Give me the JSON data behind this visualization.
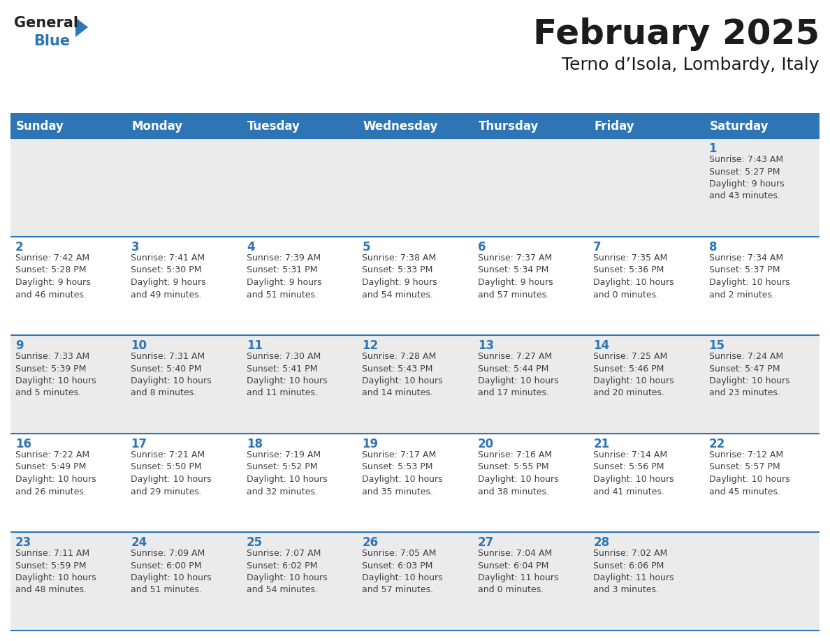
{
  "title": "February 2025",
  "subtitle": "Terno d’Isola, Lombardy, Italy",
  "header_bg": "#2E75B6",
  "header_text": "#FFFFFF",
  "cell_bg_odd": "#EBEBEB",
  "cell_bg_even": "#FFFFFF",
  "day_number_color": "#2E75B6",
  "text_color": "#404040",
  "border_color": "#2E75B6",
  "line_color": "#2E75B6",
  "days_of_week": [
    "Sunday",
    "Monday",
    "Tuesday",
    "Wednesday",
    "Thursday",
    "Friday",
    "Saturday"
  ],
  "logo_general_color": "#222222",
  "logo_blue_color": "#2E75B6",
  "title_fontsize": 36,
  "subtitle_fontsize": 18,
  "header_fontsize": 12,
  "day_num_fontsize": 12,
  "info_fontsize": 9,
  "weeks": [
    [
      {
        "day": 0,
        "info": ""
      },
      {
        "day": 0,
        "info": ""
      },
      {
        "day": 0,
        "info": ""
      },
      {
        "day": 0,
        "info": ""
      },
      {
        "day": 0,
        "info": ""
      },
      {
        "day": 0,
        "info": ""
      },
      {
        "day": 1,
        "info": "Sunrise: 7:43 AM\nSunset: 5:27 PM\nDaylight: 9 hours\nand 43 minutes."
      }
    ],
    [
      {
        "day": 2,
        "info": "Sunrise: 7:42 AM\nSunset: 5:28 PM\nDaylight: 9 hours\nand 46 minutes."
      },
      {
        "day": 3,
        "info": "Sunrise: 7:41 AM\nSunset: 5:30 PM\nDaylight: 9 hours\nand 49 minutes."
      },
      {
        "day": 4,
        "info": "Sunrise: 7:39 AM\nSunset: 5:31 PM\nDaylight: 9 hours\nand 51 minutes."
      },
      {
        "day": 5,
        "info": "Sunrise: 7:38 AM\nSunset: 5:33 PM\nDaylight: 9 hours\nand 54 minutes."
      },
      {
        "day": 6,
        "info": "Sunrise: 7:37 AM\nSunset: 5:34 PM\nDaylight: 9 hours\nand 57 minutes."
      },
      {
        "day": 7,
        "info": "Sunrise: 7:35 AM\nSunset: 5:36 PM\nDaylight: 10 hours\nand 0 minutes."
      },
      {
        "day": 8,
        "info": "Sunrise: 7:34 AM\nSunset: 5:37 PM\nDaylight: 10 hours\nand 2 minutes."
      }
    ],
    [
      {
        "day": 9,
        "info": "Sunrise: 7:33 AM\nSunset: 5:39 PM\nDaylight: 10 hours\nand 5 minutes."
      },
      {
        "day": 10,
        "info": "Sunrise: 7:31 AM\nSunset: 5:40 PM\nDaylight: 10 hours\nand 8 minutes."
      },
      {
        "day": 11,
        "info": "Sunrise: 7:30 AM\nSunset: 5:41 PM\nDaylight: 10 hours\nand 11 minutes."
      },
      {
        "day": 12,
        "info": "Sunrise: 7:28 AM\nSunset: 5:43 PM\nDaylight: 10 hours\nand 14 minutes."
      },
      {
        "day": 13,
        "info": "Sunrise: 7:27 AM\nSunset: 5:44 PM\nDaylight: 10 hours\nand 17 minutes."
      },
      {
        "day": 14,
        "info": "Sunrise: 7:25 AM\nSunset: 5:46 PM\nDaylight: 10 hours\nand 20 minutes."
      },
      {
        "day": 15,
        "info": "Sunrise: 7:24 AM\nSunset: 5:47 PM\nDaylight: 10 hours\nand 23 minutes."
      }
    ],
    [
      {
        "day": 16,
        "info": "Sunrise: 7:22 AM\nSunset: 5:49 PM\nDaylight: 10 hours\nand 26 minutes."
      },
      {
        "day": 17,
        "info": "Sunrise: 7:21 AM\nSunset: 5:50 PM\nDaylight: 10 hours\nand 29 minutes."
      },
      {
        "day": 18,
        "info": "Sunrise: 7:19 AM\nSunset: 5:52 PM\nDaylight: 10 hours\nand 32 minutes."
      },
      {
        "day": 19,
        "info": "Sunrise: 7:17 AM\nSunset: 5:53 PM\nDaylight: 10 hours\nand 35 minutes."
      },
      {
        "day": 20,
        "info": "Sunrise: 7:16 AM\nSunset: 5:55 PM\nDaylight: 10 hours\nand 38 minutes."
      },
      {
        "day": 21,
        "info": "Sunrise: 7:14 AM\nSunset: 5:56 PM\nDaylight: 10 hours\nand 41 minutes."
      },
      {
        "day": 22,
        "info": "Sunrise: 7:12 AM\nSunset: 5:57 PM\nDaylight: 10 hours\nand 45 minutes."
      }
    ],
    [
      {
        "day": 23,
        "info": "Sunrise: 7:11 AM\nSunset: 5:59 PM\nDaylight: 10 hours\nand 48 minutes."
      },
      {
        "day": 24,
        "info": "Sunrise: 7:09 AM\nSunset: 6:00 PM\nDaylight: 10 hours\nand 51 minutes."
      },
      {
        "day": 25,
        "info": "Sunrise: 7:07 AM\nSunset: 6:02 PM\nDaylight: 10 hours\nand 54 minutes."
      },
      {
        "day": 26,
        "info": "Sunrise: 7:05 AM\nSunset: 6:03 PM\nDaylight: 10 hours\nand 57 minutes."
      },
      {
        "day": 27,
        "info": "Sunrise: 7:04 AM\nSunset: 6:04 PM\nDaylight: 11 hours\nand 0 minutes."
      },
      {
        "day": 28,
        "info": "Sunrise: 7:02 AM\nSunset: 6:06 PM\nDaylight: 11 hours\nand 3 minutes."
      },
      {
        "day": 0,
        "info": ""
      }
    ]
  ]
}
